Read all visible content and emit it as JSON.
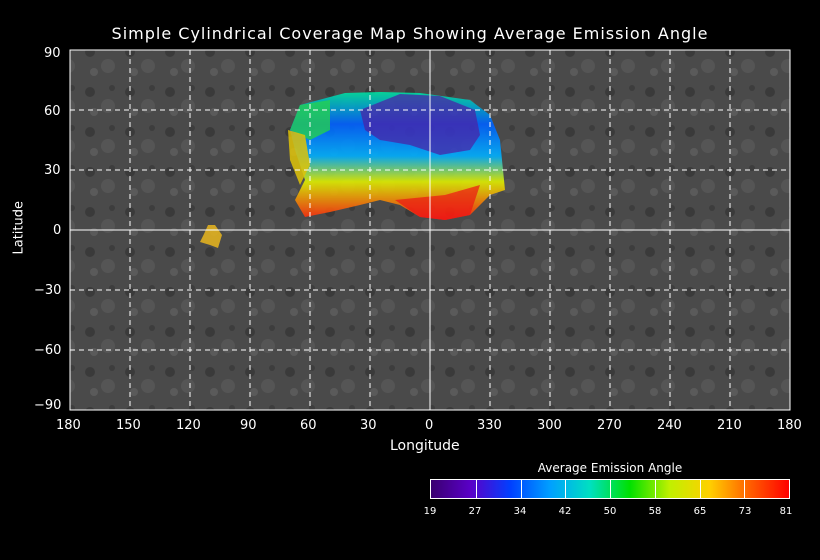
{
  "title": "Simple Cylindrical Coverage Map Showing Average Emission Angle",
  "map": {
    "xlabel": "Longitude",
    "ylabel": "Latitude",
    "x_ticks": [
      "180",
      "150",
      "120",
      "90",
      "60",
      "30",
      "0",
      "330",
      "300",
      "270",
      "240",
      "210",
      "180"
    ],
    "y_ticks": [
      "90",
      "60",
      "30",
      "0",
      "−30",
      "−60",
      "−90"
    ],
    "grid": "dashed white, solid at 0"
  },
  "colorbar": {
    "title": "Average Emission Angle",
    "ticks": [
      "19",
      "27",
      "34",
      "42",
      "50",
      "58",
      "65",
      "73",
      "81"
    ],
    "colors": [
      "#3a0070",
      "#5a00c8",
      "#0040ff",
      "#00a0ff",
      "#00e0c0",
      "#00e000",
      "#c0f000",
      "#ffd000",
      "#ff6000",
      "#ff0000"
    ]
  }
}
